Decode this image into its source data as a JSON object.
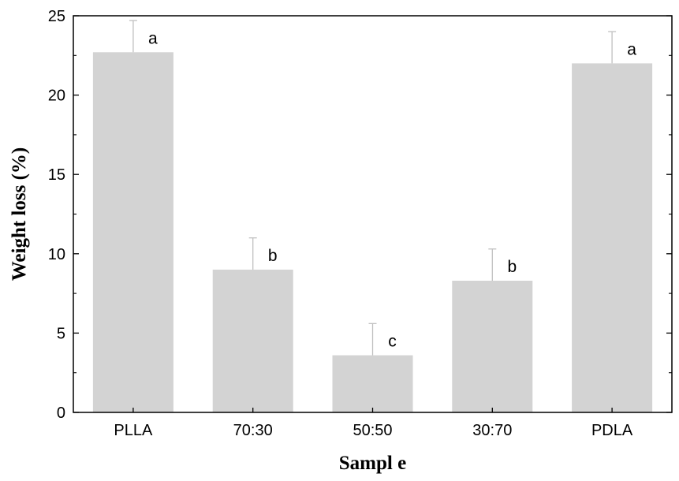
{
  "chart_data": {
    "type": "bar",
    "title": "",
    "xlabel": "Sampl e",
    "ylabel": "Weight loss (%)",
    "categories": [
      "PLLA",
      "70:30",
      "50:50",
      "30:70",
      "PDLA"
    ],
    "values": [
      22.7,
      9.0,
      3.6,
      8.3,
      22.0
    ],
    "errors": [
      2.0,
      2.0,
      2.0,
      2.0,
      2.0
    ],
    "significance_labels": [
      "a",
      "b",
      "c",
      "b",
      "a"
    ],
    "ylim": [
      0,
      25
    ],
    "yticks": [
      "0",
      "5",
      "10",
      "15",
      "20",
      "25"
    ],
    "grid": false,
    "legend": "none",
    "bar_color": "#d3d3d3",
    "errorbar_color": "#c0c0c0",
    "axis_color": "#000000"
  }
}
